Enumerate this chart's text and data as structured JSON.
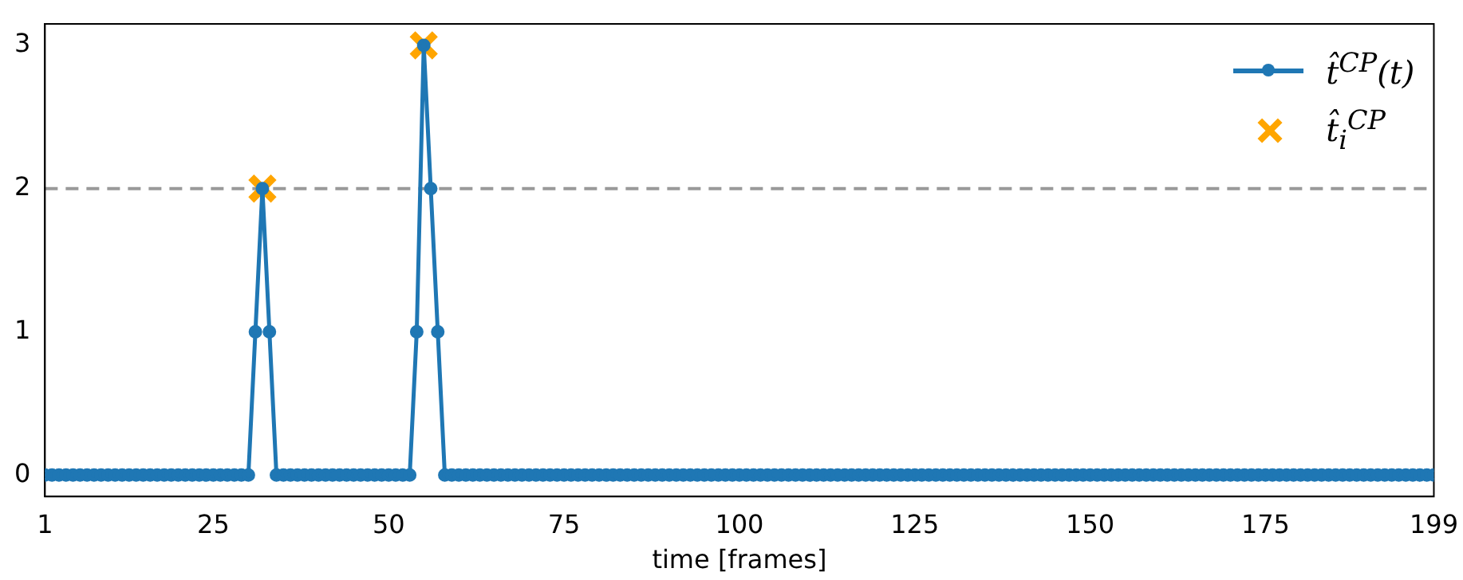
{
  "chart_data": {
    "type": "line",
    "xlabel": "time [frames]",
    "xlim": [
      1,
      199
    ],
    "xticks": [
      1,
      25,
      50,
      75,
      100,
      125,
      150,
      175,
      199
    ],
    "ylim": [
      -0.15,
      3.15
    ],
    "yticks": [
      0,
      1,
      2,
      3
    ],
    "grid": false,
    "legend": "top right",
    "ref_lines": [
      {
        "axis": "y",
        "value": 2,
        "color": "#999999",
        "line_style": "dashed"
      }
    ],
    "series": [
      {
        "name": "t̂$^{CP}$(t)",
        "color": "#1f77b4",
        "marker": "circle",
        "line_style": "solid",
        "x": [
          1,
          2,
          3,
          4,
          5,
          6,
          7,
          8,
          9,
          10,
          11,
          12,
          13,
          14,
          15,
          16,
          17,
          18,
          19,
          20,
          21,
          22,
          23,
          24,
          25,
          26,
          27,
          28,
          29,
          30,
          31,
          32,
          33,
          34,
          35,
          36,
          37,
          38,
          39,
          40,
          41,
          42,
          43,
          44,
          45,
          46,
          47,
          48,
          49,
          50,
          51,
          52,
          53,
          54,
          55,
          56,
          57,
          58,
          59,
          60,
          61,
          62,
          63,
          64,
          65,
          66,
          67,
          68,
          69,
          70,
          71,
          72,
          73,
          74,
          75,
          76,
          77,
          78,
          79,
          80,
          81,
          82,
          83,
          84,
          85,
          86,
          87,
          88,
          89,
          90,
          91,
          92,
          93,
          94,
          95,
          96,
          97,
          98,
          99,
          100,
          101,
          102,
          103,
          104,
          105,
          106,
          107,
          108,
          109,
          110,
          111,
          112,
          113,
          114,
          115,
          116,
          117,
          118,
          119,
          120,
          121,
          122,
          123,
          124,
          125,
          126,
          127,
          128,
          129,
          130,
          131,
          132,
          133,
          134,
          135,
          136,
          137,
          138,
          139,
          140,
          141,
          142,
          143,
          144,
          145,
          146,
          147,
          148,
          149,
          150,
          151,
          152,
          153,
          154,
          155,
          156,
          157,
          158,
          159,
          160,
          161,
          162,
          163,
          164,
          165,
          166,
          167,
          168,
          169,
          170,
          171,
          172,
          173,
          174,
          175,
          176,
          177,
          178,
          179,
          180,
          181,
          182,
          183,
          184,
          185,
          186,
          187,
          188,
          189,
          190,
          191,
          192,
          193,
          194,
          195,
          196,
          197,
          198,
          199
        ],
        "values": [
          0,
          0,
          0,
          0,
          0,
          0,
          0,
          0,
          0,
          0,
          0,
          0,
          0,
          0,
          0,
          0,
          0,
          0,
          0,
          0,
          0,
          0,
          0,
          0,
          0,
          0,
          0,
          0,
          0,
          0,
          1,
          2,
          1,
          0,
          0,
          0,
          0,
          0,
          0,
          0,
          0,
          0,
          0,
          0,
          0,
          0,
          0,
          0,
          0,
          0,
          0,
          0,
          0,
          1,
          3,
          2,
          1,
          0,
          0,
          0,
          0,
          0,
          0,
          0,
          0,
          0,
          0,
          0,
          0,
          0,
          0,
          0,
          0,
          0,
          0,
          0,
          0,
          0,
          0,
          0,
          0,
          0,
          0,
          0,
          0,
          0,
          0,
          0,
          0,
          0,
          0,
          0,
          0,
          0,
          0,
          0,
          0,
          0,
          0,
          0,
          0,
          0,
          0,
          0,
          0,
          0,
          0,
          0,
          0,
          0,
          0,
          0,
          0,
          0,
          0,
          0,
          0,
          0,
          0,
          0,
          0,
          0,
          0,
          0,
          0,
          0,
          0,
          0,
          0,
          0,
          0,
          0,
          0,
          0,
          0,
          0,
          0,
          0,
          0,
          0,
          0,
          0,
          0,
          0,
          0,
          0,
          0,
          0,
          0,
          0,
          0,
          0,
          0,
          0,
          0,
          0,
          0,
          0,
          0,
          0,
          0,
          0,
          0,
          0,
          0,
          0,
          0,
          0,
          0,
          0,
          0,
          0,
          0,
          0,
          0,
          0,
          0,
          0,
          0,
          0,
          0,
          0,
          0,
          0,
          0,
          0,
          0,
          0,
          0,
          0,
          0,
          0,
          0,
          0,
          0,
          0,
          0,
          0,
          0
        ]
      },
      {
        "name": "t̂$_{i}$$^{CP}$",
        "type": "scatter",
        "color": "#ffa500",
        "marker": "cross",
        "x": [
          32,
          55
        ],
        "values": [
          2,
          3
        ]
      }
    ]
  }
}
